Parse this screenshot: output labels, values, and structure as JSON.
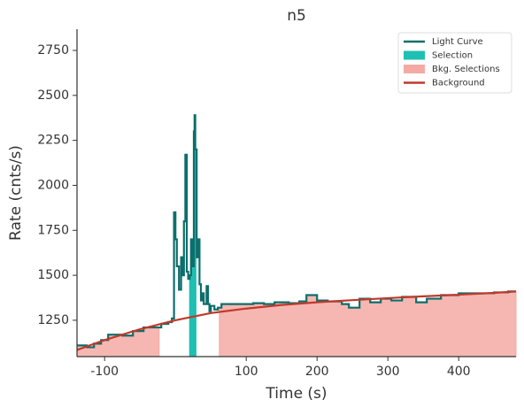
{
  "chart_data": {
    "type": "lightcurve",
    "title": "n5",
    "xlabel": "Time (s)",
    "ylabel": "Rate (cnts/s)",
    "xlim": [
      -139,
      481
    ],
    "ylim": [
      1048,
      2868
    ],
    "xticks": [
      -100,
      100,
      200,
      300,
      400
    ],
    "yticks": [
      1250,
      1500,
      1750,
      2000,
      2250,
      2500,
      2750
    ],
    "series": [
      {
        "name": "Light Curve",
        "color": "#0d6e6b",
        "x": [
          -139,
          -125,
          -115,
          -105,
          -95,
          -75,
          -60,
          -45,
          -30,
          -20,
          -10,
          -5,
          -2,
          0,
          2,
          5,
          8,
          10,
          12,
          14,
          16,
          18,
          20,
          22,
          24,
          26,
          27,
          28,
          30,
          32,
          34,
          36,
          38,
          40,
          44,
          46,
          48,
          50,
          55,
          60,
          65,
          90,
          110,
          125,
          140,
          160,
          175,
          185,
          200,
          215,
          235,
          245,
          260,
          275,
          290,
          305,
          320,
          340,
          355,
          375,
          385,
          400,
          430,
          450,
          470
        ],
        "values": [
          1110,
          1100,
          1120,
          1140,
          1170,
          1165,
          1190,
          1210,
          1210,
          1230,
          1240,
          1260,
          1850,
          1700,
          1550,
          1420,
          1600,
          1500,
          1800,
          2170,
          1520,
          1480,
          1500,
          1700,
          1550,
          2300,
          2390,
          2200,
          1600,
          1700,
          1450,
          1360,
          1400,
          1340,
          1440,
          1340,
          1300,
          1330,
          1310,
          1320,
          1340,
          1340,
          1345,
          1340,
          1350,
          1345,
          1355,
          1390,
          1360,
          1355,
          1340,
          1320,
          1370,
          1350,
          1370,
          1360,
          1380,
          1350,
          1370,
          1390,
          1390,
          1400,
          1400,
          1405,
          1410
        ]
      },
      {
        "name": "Selection",
        "color": "#1fbfb2",
        "range": [
          20,
          29
        ]
      },
      {
        "name": "Bkg. Selections",
        "color": "#f4aaa4",
        "ranges": [
          [
            -139,
            -23
          ],
          [
            62,
            481
          ]
        ]
      },
      {
        "name": "Background",
        "color": "#c0392b",
        "x": [
          -139,
          -100,
          -50,
          0,
          50,
          100,
          150,
          200,
          250,
          300,
          350,
          400,
          450,
          481
        ],
        "values": [
          1085,
          1140,
          1200,
          1250,
          1290,
          1315,
          1335,
          1350,
          1362,
          1373,
          1383,
          1392,
          1402,
          1410
        ]
      }
    ]
  }
}
